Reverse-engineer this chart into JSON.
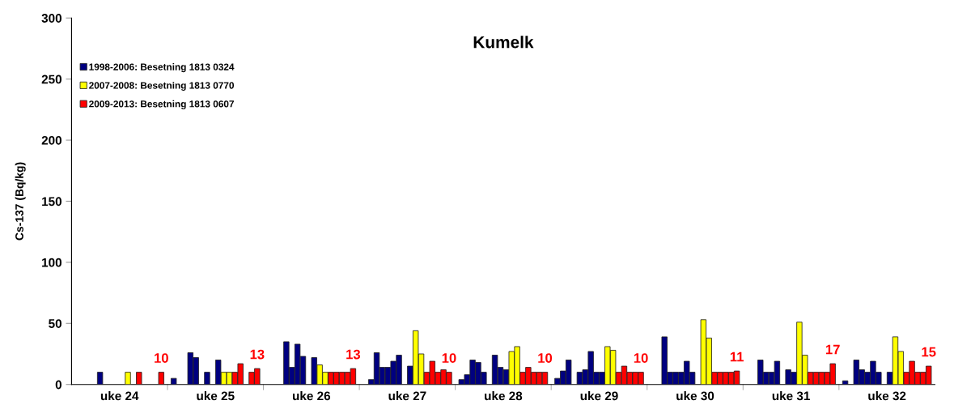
{
  "chart_data": {
    "type": "bar",
    "title": "Kumelk",
    "ylabel": "Cs-137 (Bq/kg)",
    "categories": [
      "uke 24",
      "uke 25",
      "uke 26",
      "uke 27",
      "uke 28",
      "uke 29",
      "uke 30",
      "uke 31",
      "uke 32"
    ],
    "series": [
      {
        "name": "1998-2006: Besetning 1813 0324",
        "color": "#000080",
        "values": [
          null,
          5,
          null,
          null,
          4,
          5,
          null,
          null,
          3
        ]
      },
      {
        "color": "#000080",
        "values": [
          null,
          null,
          null,
          4,
          8,
          11,
          null,
          null,
          null
        ]
      },
      {
        "color": "#000080",
        "values": [
          null,
          null,
          null,
          26,
          20,
          20,
          39,
          20,
          20
        ]
      },
      {
        "color": "#000080",
        "values": [
          null,
          26,
          35,
          14,
          18,
          null,
          10,
          10,
          12
        ]
      },
      {
        "color": "#000080",
        "values": [
          10,
          22,
          14,
          14,
          10,
          10,
          10,
          10,
          10
        ]
      },
      {
        "color": "#000080",
        "values": [
          null,
          null,
          33,
          19,
          null,
          12,
          10,
          19,
          19
        ]
      },
      {
        "color": "#000080",
        "values": [
          null,
          10,
          23,
          24,
          24,
          27,
          19,
          null,
          10
        ]
      },
      {
        "color": "#000080",
        "values": [
          null,
          null,
          null,
          null,
          14,
          10,
          10,
          12,
          null
        ]
      },
      {
        "color": "#000080",
        "values": [
          null,
          20,
          22,
          15,
          12,
          10,
          null,
          10,
          10
        ]
      },
      {
        "name": "2007-2008: Besetning 1813 0770",
        "color": "#ffff00",
        "values": [
          10,
          10,
          16,
          44,
          27,
          31,
          53,
          51,
          39
        ]
      },
      {
        "color": "#ffff00",
        "values": [
          null,
          10,
          10,
          25,
          31,
          28,
          38,
          24,
          27
        ]
      },
      {
        "name": "2009-2013: Besetning 1813 0607",
        "color": "#ff0000",
        "values": [
          10,
          10,
          10,
          10,
          10,
          10,
          10,
          10,
          10
        ]
      },
      {
        "color": "#ff0000",
        "values": [
          null,
          17,
          10,
          19,
          14,
          15,
          10,
          10,
          19
        ]
      },
      {
        "color": "#ff0000",
        "values": [
          null,
          null,
          10,
          10,
          10,
          10,
          10,
          10,
          10
        ]
      },
      {
        "color": "#ff0000",
        "values": [
          null,
          10,
          10,
          12,
          10,
          10,
          10,
          10,
          10
        ]
      },
      {
        "color": "#ff0000",
        "values": [
          10,
          13,
          13,
          10,
          10,
          10,
          11,
          17,
          15
        ],
        "value_labels": [
          "10",
          "13",
          "13",
          "10",
          "10",
          "10",
          "11",
          "17",
          "15"
        ]
      }
    ],
    "ylim": [
      0,
      300
    ],
    "yticks": [
      0,
      50,
      100,
      150,
      200,
      250,
      300
    ],
    "grid": false,
    "legend": "top left"
  }
}
